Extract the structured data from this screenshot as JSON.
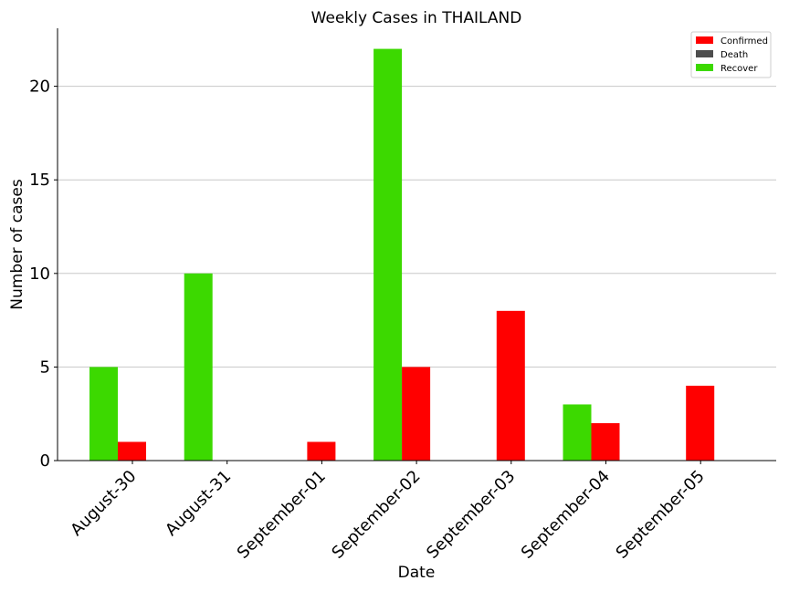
{
  "chart_data": {
    "type": "bar",
    "title": "Weekly Cases in THAILAND",
    "xlabel": "Date",
    "ylabel": "Number of cases",
    "categories": [
      "August-30",
      "August-31",
      "September-01",
      "September-02",
      "September-03",
      "September-04",
      "September-05"
    ],
    "series": [
      {
        "name": "Confirmed",
        "color": "#ff0000",
        "values": [
          1,
          0,
          1,
          5,
          8,
          2,
          4
        ]
      },
      {
        "name": "Death",
        "color": "#4d4d4d",
        "values": [
          0,
          0,
          0,
          0,
          0,
          0,
          0
        ]
      },
      {
        "name": "Recover",
        "color": "#3cd900",
        "values": [
          5,
          10,
          0,
          22,
          0,
          3,
          0
        ]
      }
    ],
    "ylim": [
      0,
      23.1
    ],
    "yticks": [
      0,
      5,
      10,
      15,
      20
    ],
    "grid": "horizontal",
    "legend": "top-right"
  }
}
